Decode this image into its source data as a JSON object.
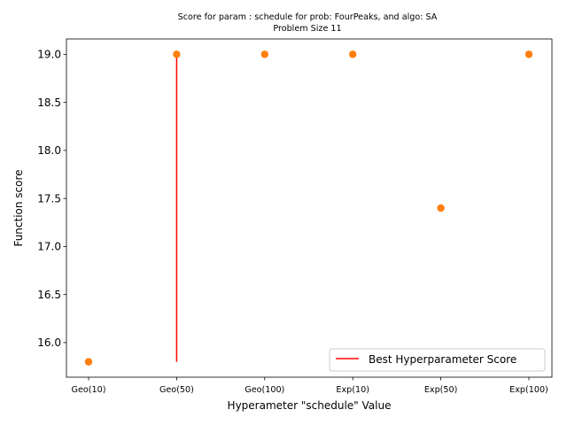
{
  "chart_data": {
    "type": "scatter",
    "title": "Score for param : schedule for prob: FourPeaks, and algo: SA",
    "subtitle": "Problem Size 11",
    "xlabel": "Hyperameter \"schedule\" Value",
    "ylabel": "Function score",
    "categories": [
      "Geo(10)",
      "Geo(50)",
      "Geo(100)",
      "Exp(10)",
      "Exp(50)",
      "Exp(100)"
    ],
    "values": [
      15.8,
      19.0,
      19.0,
      19.0,
      17.4,
      19.0
    ],
    "ylim": [
      15.64,
      19.16
    ],
    "yticks": [
      16.0,
      16.5,
      17.0,
      17.5,
      18.0,
      18.5,
      19.0
    ],
    "ytick_labels": [
      "16.0",
      "16.5",
      "17.0",
      "17.5",
      "18.0",
      "18.5",
      "19.0"
    ],
    "best_line": {
      "category": "Geo(50)",
      "y_from": 15.8,
      "y_to": 19.0,
      "label": "Best Hyperparameter Score",
      "color": "#ff0000"
    },
    "marker_color": "#ff7f0e",
    "legend_position": "lower-right",
    "grid": false
  }
}
